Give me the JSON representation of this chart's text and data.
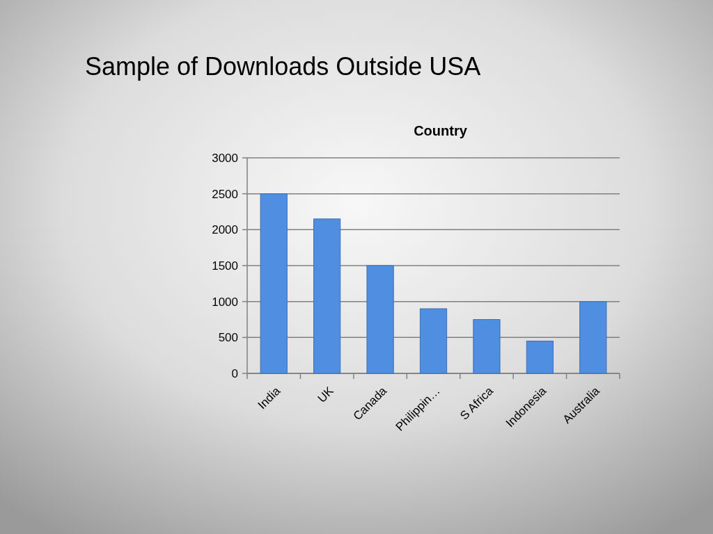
{
  "chart_data": {
    "type": "bar",
    "title": "Sample of Downloads Outside USA",
    "subtitle": "Country",
    "categories": [
      "India",
      "UK",
      "Canada",
      "Philippin…",
      "S Africa",
      "Indonesia",
      "Australia"
    ],
    "values": [
      2500,
      2150,
      1500,
      900,
      750,
      450,
      1000
    ],
    "color": "#4f8ee0",
    "ylim": [
      0,
      3000
    ],
    "yticks": [
      0,
      500,
      1000,
      1500,
      2000,
      2500,
      3000
    ],
    "grid": "y"
  }
}
